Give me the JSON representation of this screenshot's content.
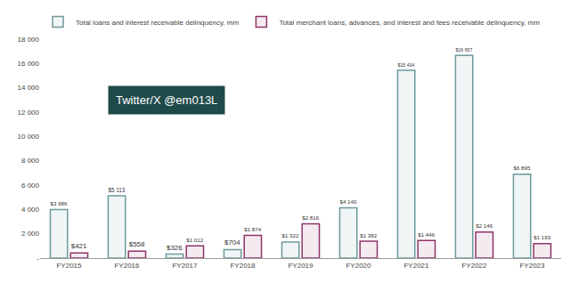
{
  "chart_data": {
    "type": "bar",
    "categories": [
      "FY2015",
      "FY2016",
      "FY2017",
      "FY2018",
      "FY2019",
      "FY2020",
      "FY2021",
      "FY2022",
      "FY2023"
    ],
    "series": [
      {
        "name": "Total loans and interest receivable delinquency, mm",
        "color": "#6b9a9a",
        "values": [
          3986,
          5113,
          326,
          704,
          1322,
          4140,
          15434,
          16657,
          6895
        ],
        "value_labels": [
          "$3 986",
          "$5 113",
          "$326",
          "$704",
          "$1 322",
          "$4 140",
          "$15 434",
          "$16 657",
          "$6 895"
        ]
      },
      {
        "name": "Total merchant loans, advances, and interest and fees receivable delinquency, mm",
        "color": "#8e3468",
        "values": [
          421,
          558,
          1012,
          1874,
          2816,
          1382,
          1446,
          2146,
          1193
        ],
        "value_labels": [
          "$421",
          "$558",
          "$1 012",
          "$1 874",
          "$2 816",
          "$1 382",
          "$1 446",
          "$2 146",
          "$1 193"
        ]
      }
    ],
    "ylim": [
      0,
      18000
    ],
    "yticks": [
      {
        "value": 0,
        "label": "-"
      },
      {
        "value": 2000,
        "label": "2 000"
      },
      {
        "value": 4000,
        "label": "4 000"
      },
      {
        "value": 6000,
        "label": "6 000"
      },
      {
        "value": 8000,
        "label": "8 000"
      },
      {
        "value": 10000,
        "label": "10 000"
      },
      {
        "value": 12000,
        "label": "12 000"
      },
      {
        "value": 14000,
        "label": "14 000"
      },
      {
        "value": 16000,
        "label": "16 000"
      },
      {
        "value": 18000,
        "label": "18 000"
      }
    ],
    "annotations": [
      "Twitter/X @em013L"
    ],
    "data_labels": true,
    "grid": false,
    "legend": "top left"
  }
}
